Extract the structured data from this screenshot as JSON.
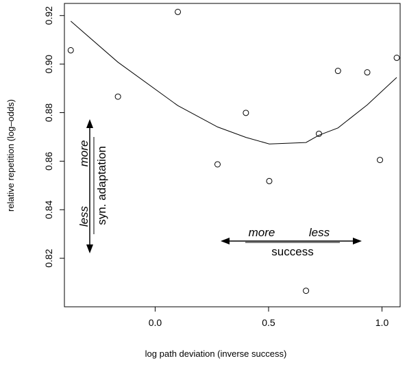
{
  "chart_data": {
    "type": "scatter",
    "title": "",
    "xlabel": "log path deviation (inverse success)",
    "ylabel": "relative repetition (log–odds)",
    "xlim": [
      -0.4,
      1.08
    ],
    "ylim": [
      0.8,
      0.925
    ],
    "x_ticks": [
      0.0,
      0.5,
      1.0
    ],
    "x_tick_labels": [
      "0.0",
      "0.5",
      "1.0"
    ],
    "y_ticks": [
      0.82,
      0.84,
      0.86,
      0.88,
      0.9,
      0.92
    ],
    "y_tick_labels": [
      "0.82",
      "0.84",
      "0.86",
      "0.88",
      "0.90",
      "0.92"
    ],
    "grid": false,
    "legend": "none",
    "points": [
      {
        "x": -0.372,
        "y": 0.9057
      },
      {
        "x": -0.164,
        "y": 0.8866
      },
      {
        "x": 0.1,
        "y": 0.9215
      },
      {
        "x": 0.275,
        "y": 0.8587
      },
      {
        "x": 0.4,
        "y": 0.8799
      },
      {
        "x": 0.503,
        "y": 0.8518
      },
      {
        "x": 0.665,
        "y": 0.8066
      },
      {
        "x": 0.722,
        "y": 0.8713
      },
      {
        "x": 0.806,
        "y": 0.8972
      },
      {
        "x": 0.935,
        "y": 0.8966
      },
      {
        "x": 0.991,
        "y": 0.8605
      },
      {
        "x": 1.065,
        "y": 0.9026
      }
    ],
    "smooth_line": [
      {
        "x": -0.372,
        "y": 0.9177
      },
      {
        "x": -0.164,
        "y": 0.9008
      },
      {
        "x": 0.1,
        "y": 0.8829
      },
      {
        "x": 0.275,
        "y": 0.8741
      },
      {
        "x": 0.4,
        "y": 0.8698
      },
      {
        "x": 0.503,
        "y": 0.8671
      },
      {
        "x": 0.665,
        "y": 0.8677
      },
      {
        "x": 0.722,
        "y": 0.8707
      },
      {
        "x": 0.806,
        "y": 0.8737
      },
      {
        "x": 0.935,
        "y": 0.8832
      },
      {
        "x": 1.065,
        "y": 0.8945
      }
    ],
    "annotations": {
      "vertical": {
        "more": "more",
        "less": "less",
        "label": "syn. adaptation"
      },
      "horizontal": {
        "more": "more",
        "less": "less",
        "label": "success"
      }
    }
  }
}
